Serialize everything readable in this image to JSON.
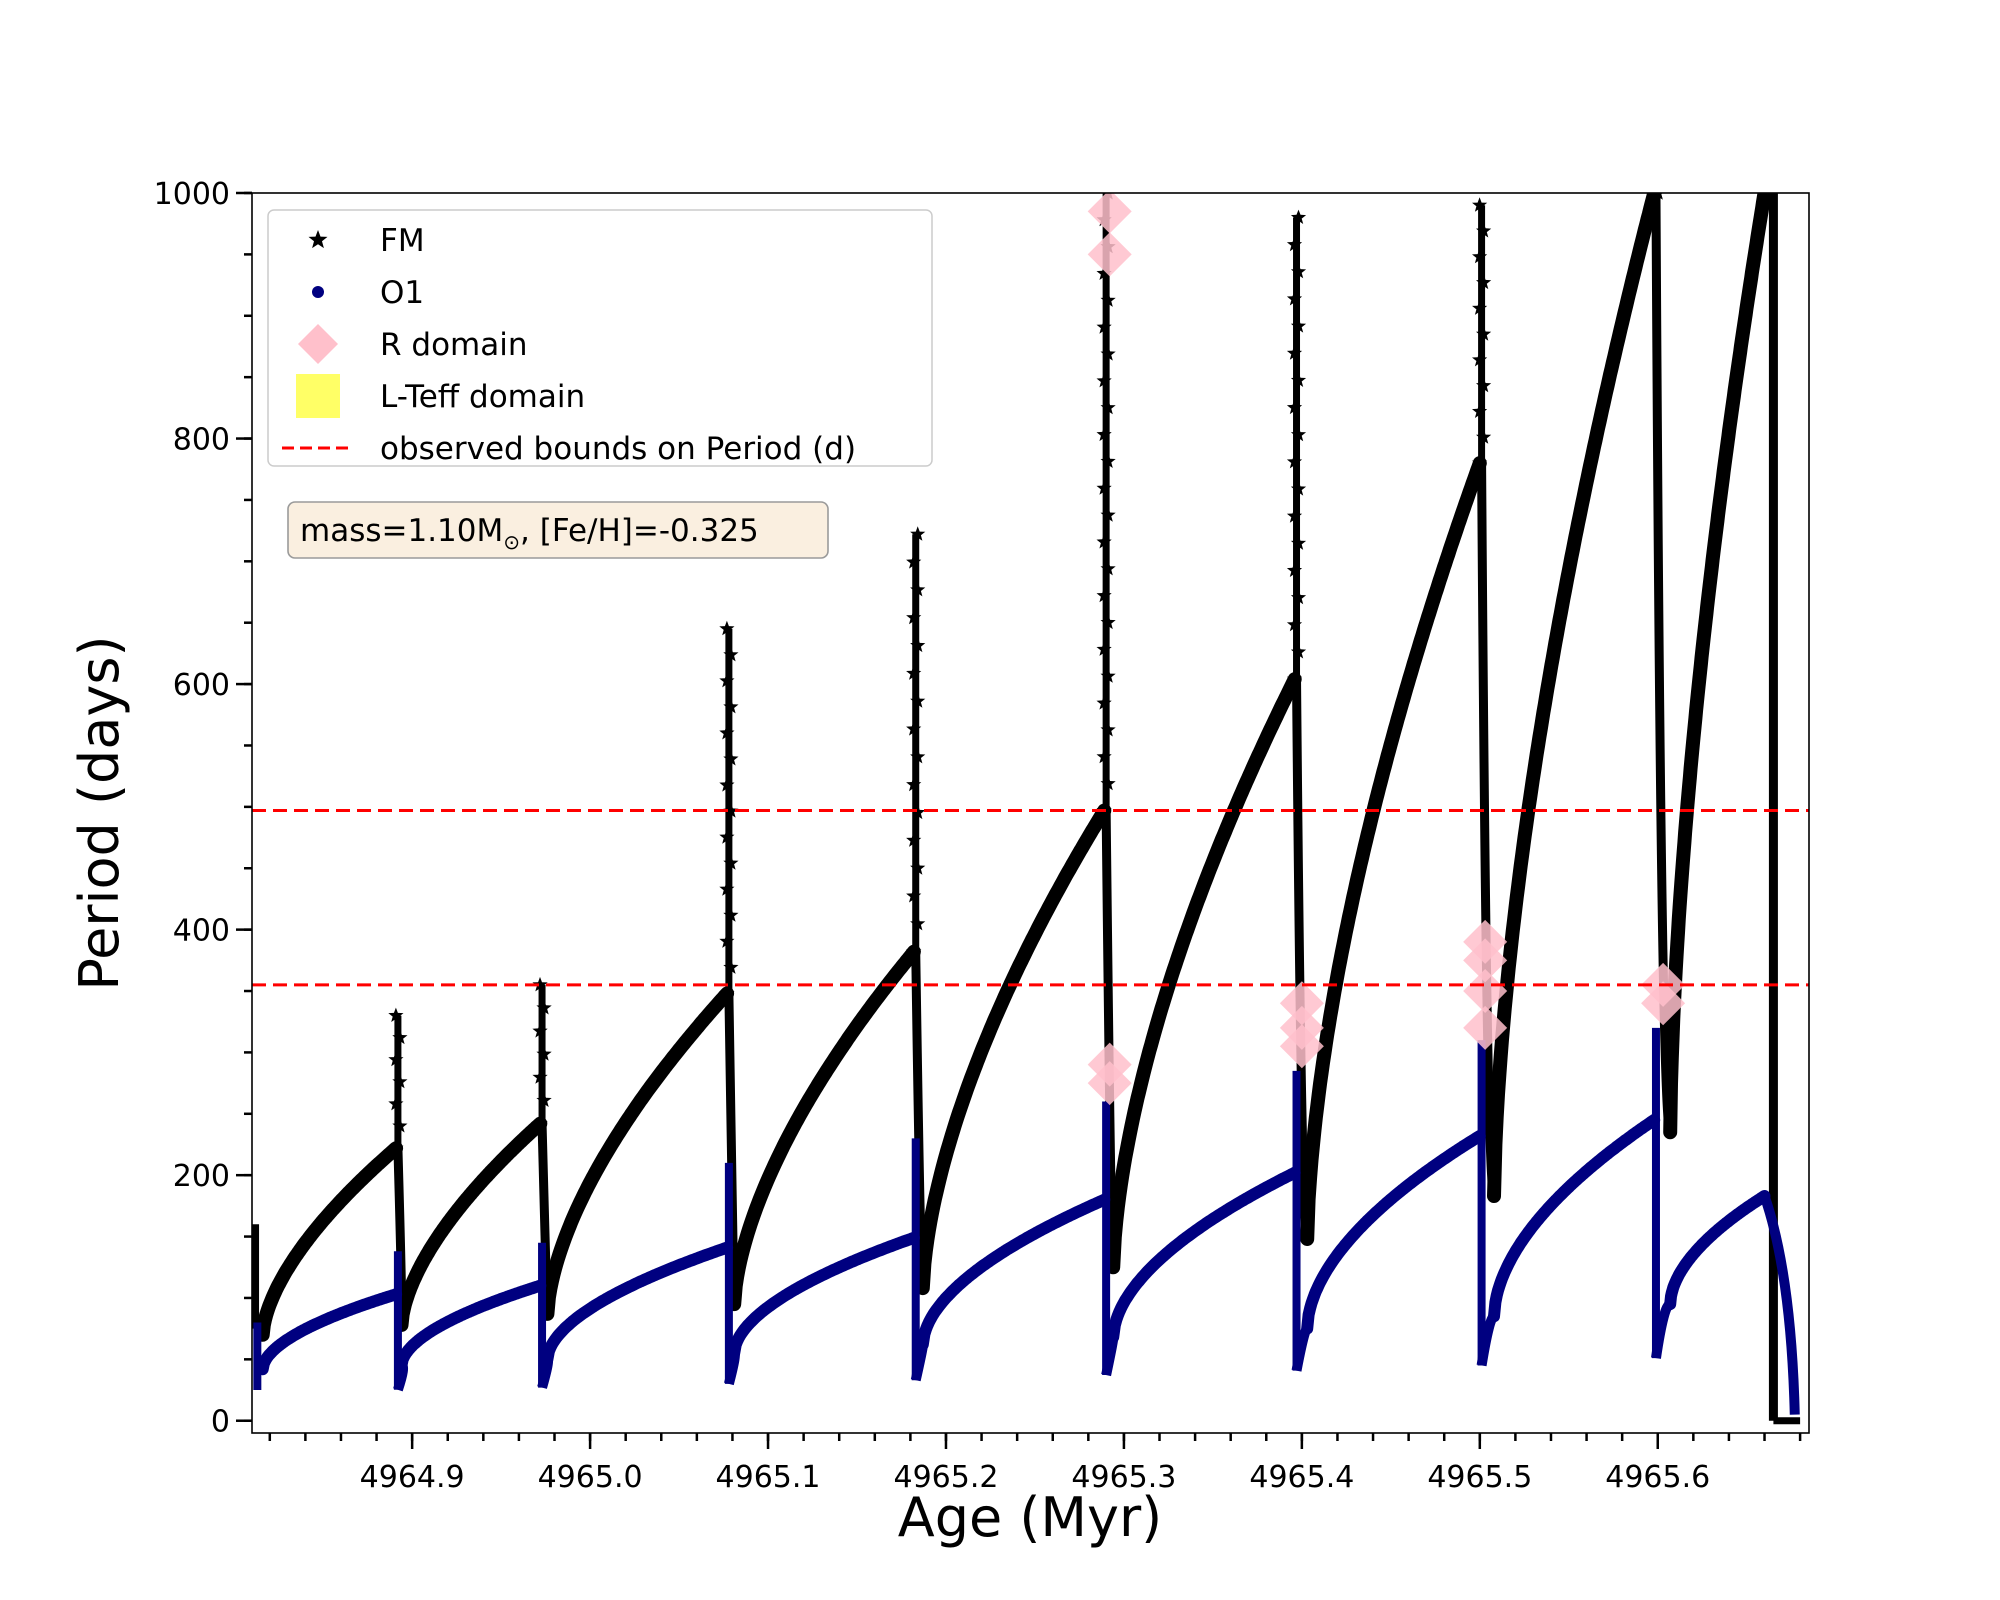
{
  "chart_data": {
    "type": "scatter",
    "xlabel": "Age (Myr)",
    "ylabel": "Period (days)",
    "xlim": [
      4964.81,
      4965.685
    ],
    "ylim": [
      -10,
      1000
    ],
    "x_ticks": [
      4964.9,
      4965.0,
      4965.1,
      4965.2,
      4965.3,
      4965.4,
      4965.5,
      4965.6
    ],
    "x_tick_labels": [
      "4964.9",
      "4965.0",
      "4965.1",
      "4965.2",
      "4965.3",
      "4965.4",
      "4965.5",
      "4965.6"
    ],
    "y_ticks": [
      0,
      200,
      400,
      600,
      800,
      1000
    ],
    "y_tick_labels": [
      "0",
      "200",
      "400",
      "600",
      "800",
      "1000"
    ],
    "grid": false,
    "legend_position": "top-left",
    "annotation": {
      "text": "mass=1.10M",
      "sub": "⊙",
      "rest": ", [Fe/H]=-0.325"
    },
    "legend": [
      {
        "label": "FM",
        "marker": "star",
        "color": "#000000"
      },
      {
        "label": "O1",
        "marker": "circle",
        "color": "#000080"
      },
      {
        "label": "R domain",
        "marker": "diamond",
        "color": "#ffc0cb"
      },
      {
        "label": "L-Teff domain",
        "marker": "square",
        "color": "#ffff66"
      },
      {
        "label": "observed bounds on Period (d)",
        "marker": "dashed-line",
        "color": "#ff0000"
      }
    ],
    "hlines": [
      355,
      497
    ],
    "series": [
      {
        "name": "FM",
        "color": "#000000",
        "cycles": [
          {
            "x0": 4964.816,
            "x1": 4964.891,
            "p0": 70,
            "p1": 222,
            "spike": 330
          },
          {
            "x0": 4964.894,
            "x1": 4964.972,
            "p0": 78,
            "p1": 242,
            "spike": 355
          },
          {
            "x0": 4964.976,
            "x1": 4965.077,
            "p0": 87,
            "p1": 348,
            "spike": 645
          },
          {
            "x0": 4965.081,
            "x1": 4965.182,
            "p0": 95,
            "p1": 382,
            "spike": 722
          },
          {
            "x0": 4965.187,
            "x1": 4965.289,
            "p0": 108,
            "p1": 497,
            "spike": 1000
          },
          {
            "x0": 4965.294,
            "x1": 4965.396,
            "p0": 125,
            "p1": 604,
            "spike": 980
          },
          {
            "x0": 4965.403,
            "x1": 4965.5,
            "p0": 148,
            "p1": 780,
            "spike": 990
          },
          {
            "x0": 4965.508,
            "x1": 4965.598,
            "p0": 183,
            "p1": 1000,
            "spike": 1000
          },
          {
            "x0": 4965.607,
            "x1": 4965.66,
            "p0": 235,
            "p1": 1000,
            "spike": 1000
          }
        ]
      },
      {
        "name": "O1",
        "color": "#000080",
        "cycles": [
          {
            "x0": 4964.816,
            "x1": 4964.891,
            "p0": 42,
            "p1": 103,
            "spike": 138
          },
          {
            "x0": 4964.894,
            "x1": 4964.972,
            "p0": 45,
            "p1": 110,
            "spike": 145
          },
          {
            "x0": 4964.976,
            "x1": 4965.077,
            "p0": 50,
            "p1": 141,
            "spike": 210
          },
          {
            "x0": 4965.081,
            "x1": 4965.182,
            "p0": 55,
            "p1": 149,
            "spike": 230
          },
          {
            "x0": 4965.187,
            "x1": 4965.289,
            "p0": 62,
            "p1": 180,
            "spike": 260
          },
          {
            "x0": 4965.294,
            "x1": 4965.396,
            "p0": 68,
            "p1": 202,
            "spike": 285
          },
          {
            "x0": 4965.403,
            "x1": 4965.5,
            "p0": 75,
            "p1": 232,
            "spike": 310
          },
          {
            "x0": 4965.508,
            "x1": 4965.598,
            "p0": 85,
            "p1": 245,
            "spike": 320
          },
          {
            "x0": 4965.607,
            "x1": 4965.66,
            "p0": 95,
            "p1": 183,
            "spike": 0
          }
        ]
      },
      {
        "name": "R domain",
        "color": "#ffc0cb",
        "points": [
          [
            4965.292,
            985
          ],
          [
            4965.292,
            950
          ],
          [
            4965.292,
            290
          ],
          [
            4965.292,
            275
          ],
          [
            4965.4,
            340
          ],
          [
            4965.4,
            320
          ],
          [
            4965.4,
            305
          ],
          [
            4965.503,
            390
          ],
          [
            4965.503,
            375
          ],
          [
            4965.503,
            350
          ],
          [
            4965.503,
            320
          ],
          [
            4965.603,
            355
          ],
          [
            4965.603,
            340
          ]
        ]
      }
    ]
  }
}
